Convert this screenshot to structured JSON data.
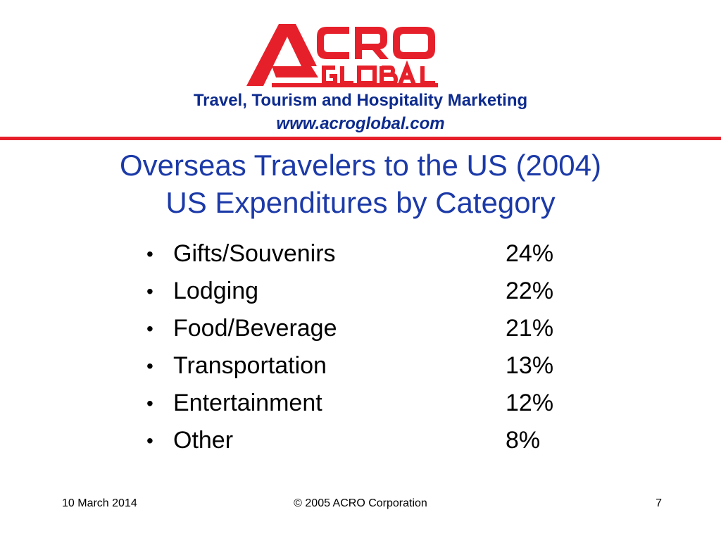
{
  "logo": {
    "top_text": "ACRO",
    "bottom_text": "GLOBAL",
    "color": "#e6202a"
  },
  "header": {
    "tagline": "Travel, Tourism and Hospitality Marketing",
    "website": "www.acroglobal.com",
    "text_color": "#0d2b8e",
    "divider_color": "#e6202a"
  },
  "title": {
    "line1": "Overseas Travelers to the US (2004)",
    "line2": "US Expenditures by Category",
    "color": "#1c3aa8"
  },
  "items": [
    {
      "bullet": "•",
      "label": "Gifts/Souvenirs",
      "value": "24%"
    },
    {
      "bullet": "•",
      "label": "Lodging",
      "value": "22%"
    },
    {
      "bullet": "•",
      "label": "Food/Beverage",
      "value": "21%"
    },
    {
      "bullet": "•",
      "label": "Transportation",
      "value": "13%"
    },
    {
      "bullet": "•",
      "label": "Entertainment",
      "value": "12%"
    },
    {
      "bullet": "•",
      "label": "Other",
      "value": "8%"
    }
  ],
  "footer": {
    "date": "10 March 2014",
    "copyright": "© 2005 ACRO Corporation",
    "page_number": "7"
  }
}
